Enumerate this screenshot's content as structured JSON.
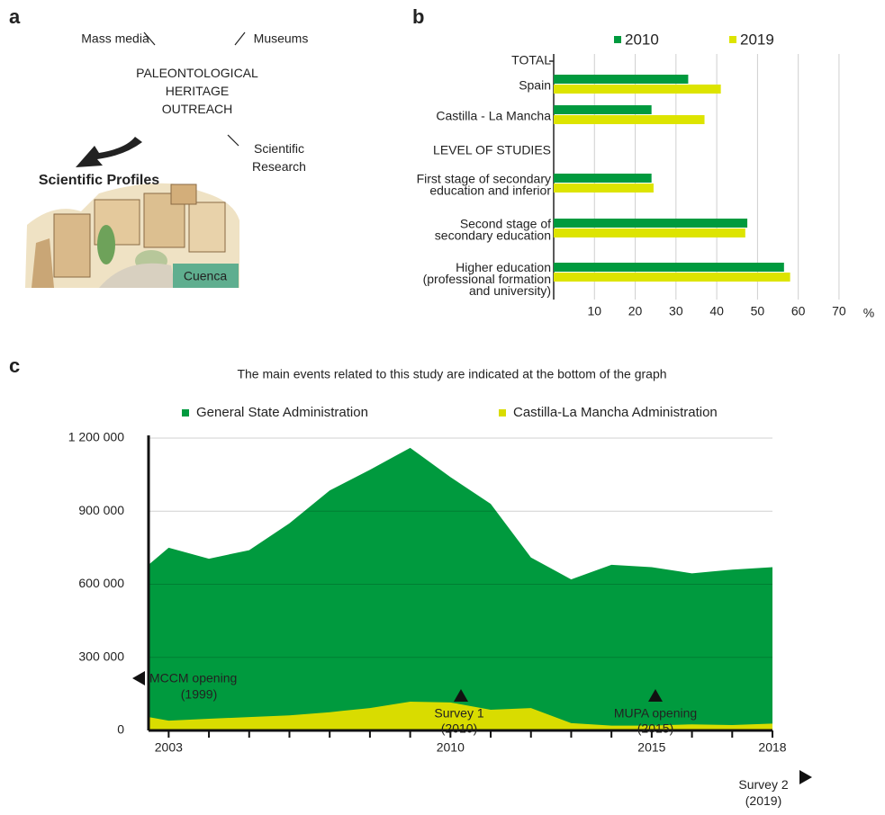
{
  "panel_labels": [
    "a",
    "b",
    "c"
  ],
  "diagram": {
    "mass_media": "Mass media",
    "museums": "Museums",
    "outreach": "PALEONTOLOGICAL\nHERITAGE\nOUTREACH",
    "research": "Scientific\nResearch",
    "profiles": "Scientific Profiles",
    "city": "Cuenca"
  },
  "chart_data": [
    {
      "type": "hbar",
      "group_labels": [
        "TOTAL",
        "LEVEL OF STUDIES"
      ],
      "categories": [
        "Spain",
        "Castilla - La Mancha",
        "First stage of secondary\neducation and inferior",
        "Second stage of\nsecondary education",
        "Higher education\n(professional formation\nand university)"
      ],
      "series": [
        {
          "name": "2010",
          "color": "#009a3e",
          "values": [
            33,
            24,
            24,
            47.5,
            56.5
          ]
        },
        {
          "name": "2019",
          "color": "#dde400",
          "values": [
            41,
            37,
            24.5,
            47,
            58
          ]
        }
      ],
      "xlim": [
        0,
        72
      ],
      "xticks": [
        10,
        20,
        30,
        40,
        50,
        60,
        70
      ],
      "xlabel": "%",
      "grid": true
    },
    {
      "type": "area",
      "subtitle": "The main events related to this study are indicated at the bottom of the graph",
      "x": [
        2002,
        2003,
        2004,
        2005,
        2006,
        2007,
        2008,
        2009,
        2010,
        2011,
        2012,
        2013,
        2014,
        2015,
        2016,
        2017,
        2018
      ],
      "series": [
        {
          "name": "General State Administration",
          "color": "#009a3e",
          "values": [
            610000,
            750000,
            705000,
            740000,
            850000,
            985000,
            1070000,
            1160000,
            1040000,
            930000,
            710000,
            620000,
            680000,
            670000,
            645000,
            660000,
            670000
          ]
        },
        {
          "name": "Castilla-La Mancha Administration",
          "color": "#d9dc00",
          "values": [
            70000,
            40000,
            48000,
            55000,
            62000,
            75000,
            92000,
            118000,
            115000,
            85000,
            92000,
            30000,
            20000,
            20000,
            25000,
            22000,
            28000
          ]
        }
      ],
      "xlim": [
        2002.5,
        2018
      ],
      "xticks": [
        2003,
        2010,
        2015,
        2018
      ],
      "minor_xticks": [
        2004,
        2005,
        2006,
        2007,
        2008,
        2009,
        2011,
        2012,
        2013,
        2014,
        2016,
        2017
      ],
      "ylim": [
        0,
        1200000
      ],
      "yticks": [
        0,
        {
          "value": 300000,
          "label": "300 000"
        },
        {
          "value": 600000,
          "label": "600 000"
        },
        {
          "value": 900000,
          "label": "900 000"
        },
        {
          "value": 1200000,
          "label": "1 200 000"
        }
      ],
      "grid": true,
      "annotations": [
        "MCCM opening",
        "(1999)",
        "Survey 1\n(2010)",
        "MUPA opening\n(2015)",
        "Survey 2\n(2019)"
      ]
    }
  ]
}
